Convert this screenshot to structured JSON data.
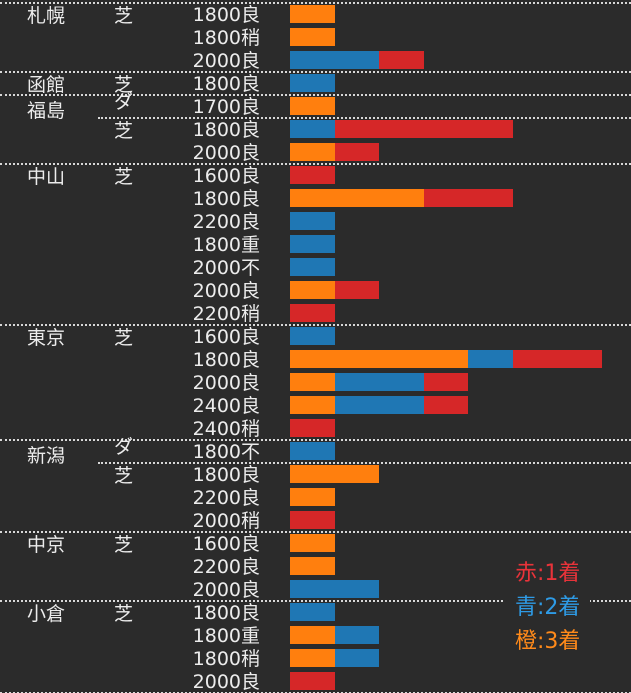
{
  "chart_data": {
    "type": "bar",
    "orientation": "horizontal-stacked",
    "unit": "finishes",
    "colors": {
      "first": "#d62728",
      "second": "#1f77b4",
      "third": "#ff7f0e"
    },
    "legend": {
      "placement": "bottom-right",
      "items": [
        "赤:1着",
        "青:2着",
        "橙:3着"
      ]
    },
    "groups": [
      {
        "venue": "札幌",
        "surfaces": [
          {
            "surface": "芝",
            "rows": [
              {
                "label": "1800良",
                "third": 1,
                "second": 0,
                "first": 0
              },
              {
                "label": "1800稍",
                "third": 1,
                "second": 0,
                "first": 0
              },
              {
                "label": "2000良",
                "third": 0,
                "second": 2,
                "first": 1
              }
            ]
          }
        ]
      },
      {
        "venue": "函館",
        "surfaces": [
          {
            "surface": "芝",
            "rows": [
              {
                "label": "1800良",
                "third": 0,
                "second": 1,
                "first": 0
              }
            ]
          }
        ]
      },
      {
        "venue": "福島",
        "surfaces": [
          {
            "surface": "ダ",
            "rows": [
              {
                "label": "1700良",
                "third": 1,
                "second": 0,
                "first": 0
              }
            ]
          },
          {
            "surface": "芝",
            "rows": [
              {
                "label": "1800良",
                "third": 0,
                "second": 1,
                "first": 4
              },
              {
                "label": "2000良",
                "third": 1,
                "second": 0,
                "first": 1
              }
            ]
          }
        ]
      },
      {
        "venue": "中山",
        "surfaces": [
          {
            "surface": "芝",
            "rows": [
              {
                "label": "1600良",
                "third": 0,
                "second": 0,
                "first": 1
              },
              {
                "label": "1800良",
                "third": 3,
                "second": 0,
                "first": 2
              },
              {
                "label": "2200良",
                "third": 0,
                "second": 1,
                "first": 0
              },
              {
                "label": "1800重",
                "third": 0,
                "second": 1,
                "first": 0
              },
              {
                "label": "2000不",
                "third": 0,
                "second": 1,
                "first": 0
              },
              {
                "label": "2000良",
                "third": 1,
                "second": 0,
                "first": 1
              },
              {
                "label": "2200稍",
                "third": 0,
                "second": 0,
                "first": 1
              }
            ]
          }
        ]
      },
      {
        "venue": "東京",
        "surfaces": [
          {
            "surface": "芝",
            "rows": [
              {
                "label": "1600良",
                "third": 0,
                "second": 1,
                "first": 0
              },
              {
                "label": "1800良",
                "third": 4,
                "second": 1,
                "first": 2
              },
              {
                "label": "2000良",
                "third": 1,
                "second": 2,
                "first": 1
              },
              {
                "label": "2400良",
                "third": 1,
                "second": 2,
                "first": 1
              },
              {
                "label": "2400稍",
                "third": 0,
                "second": 0,
                "first": 1
              }
            ]
          }
        ]
      },
      {
        "venue": "新潟",
        "surfaces": [
          {
            "surface": "ダ",
            "rows": [
              {
                "label": "1800不",
                "third": 0,
                "second": 1,
                "first": 0
              }
            ]
          },
          {
            "surface": "芝",
            "rows": [
              {
                "label": "1800良",
                "third": 2,
                "second": 0,
                "first": 0
              },
              {
                "label": "2200良",
                "third": 1,
                "second": 0,
                "first": 0
              },
              {
                "label": "2000稍",
                "third": 0,
                "second": 0,
                "first": 1
              }
            ]
          }
        ]
      },
      {
        "venue": "中京",
        "surfaces": [
          {
            "surface": "芝",
            "rows": [
              {
                "label": "1600良",
                "third": 1,
                "second": 0,
                "first": 0
              },
              {
                "label": "2200良",
                "third": 1,
                "second": 0,
                "first": 0
              },
              {
                "label": "2000良",
                "third": 0,
                "second": 2,
                "first": 0
              }
            ]
          }
        ]
      },
      {
        "venue": "小倉",
        "surfaces": [
          {
            "surface": "芝",
            "rows": [
              {
                "label": "1800良",
                "third": 0,
                "second": 1,
                "first": 0
              },
              {
                "label": "1800重",
                "third": 1,
                "second": 1,
                "first": 0
              },
              {
                "label": "1800稍",
                "third": 1,
                "second": 1,
                "first": 0
              },
              {
                "label": "2000良",
                "third": 0,
                "second": 0,
                "first": 1
              }
            ]
          }
        ]
      }
    ]
  }
}
